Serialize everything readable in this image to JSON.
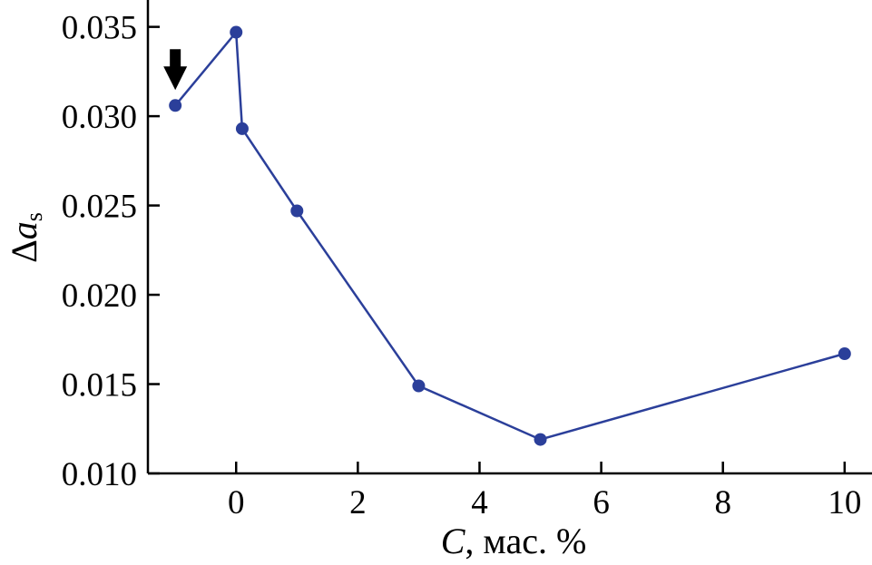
{
  "chart_data": {
    "type": "line",
    "title": "",
    "xlabel": {
      "symbol": "C",
      "rest": ", мас. %"
    },
    "ylabel": {
      "prefix": "Δ",
      "symbol": "a",
      "subscript": "s"
    },
    "xlim": [
      -1.45,
      10.45
    ],
    "ylim": [
      0.01,
      0.0362
    ],
    "xticks": [
      0,
      2,
      4,
      6,
      8,
      10
    ],
    "xtick_labels": [
      "0",
      "2",
      "4",
      "6",
      "8",
      "10"
    ],
    "yticks": [
      0.01,
      0.015,
      0.02,
      0.025,
      0.03,
      0.035
    ],
    "ytick_labels": [
      "0.010",
      "0.015",
      "0.020",
      "0.025",
      "0.030",
      "0.035"
    ],
    "grid": false,
    "series": [
      {
        "color": "#2b3f9a",
        "marker": "circle",
        "x": [
          -1,
          0,
          0.1,
          1,
          3,
          5,
          10
        ],
        "y": [
          0.0306,
          0.0347,
          0.0293,
          0.0247,
          0.0149,
          0.0119,
          0.0167
        ]
      }
    ],
    "annotations": [
      {
        "type": "arrow-down",
        "icon": "down-arrow-icon",
        "points_to_index": 0,
        "color": "#000000"
      }
    ]
  }
}
